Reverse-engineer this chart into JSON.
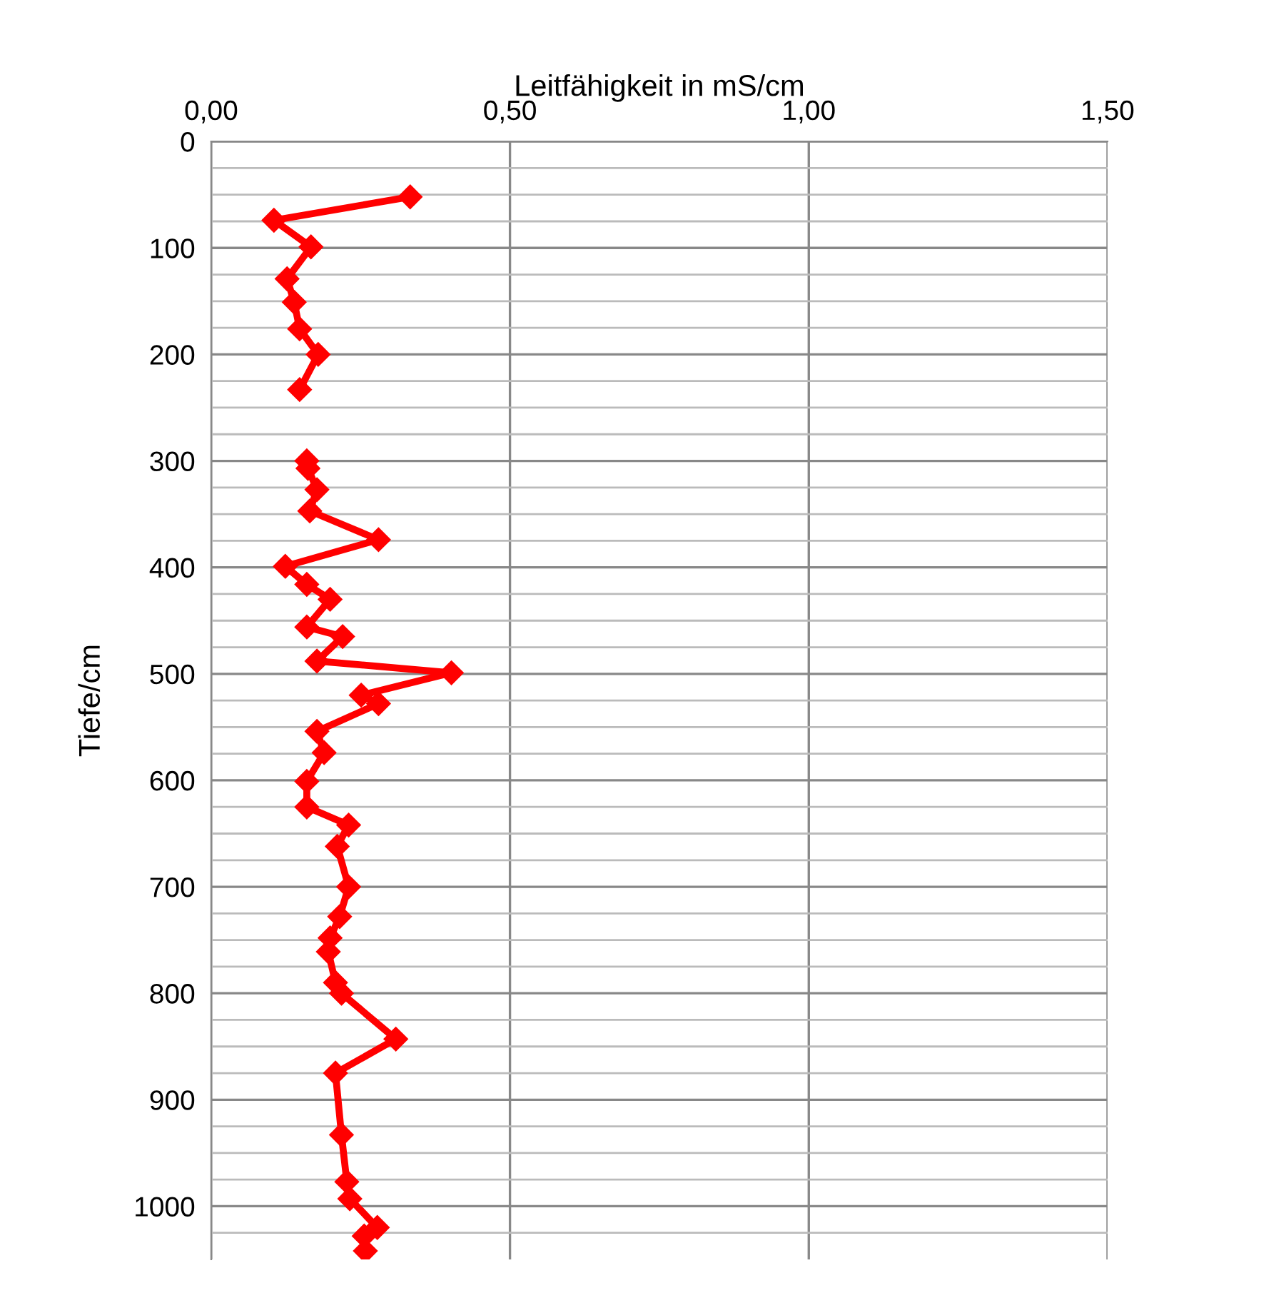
{
  "chart_data": {
    "type": "line",
    "xlabel": "Leitfähigkeit in mS/cm",
    "ylabel": "Tiefe/cm",
    "series": [
      {
        "color": "#ff0000",
        "x": [
          0.333,
          0.105,
          0.167,
          0.127,
          0.139,
          0.148,
          0.179,
          0.148,
          null,
          0.16,
          0.162,
          0.177,
          0.165,
          0.28,
          0.124,
          0.16,
          0.199,
          0.16,
          0.22,
          0.177,
          0.402,
          0.251,
          0.28,
          0.177,
          0.189,
          0.16,
          0.16,
          0.23,
          0.211,
          0.23,
          0.215,
          0.199,
          0.196,
          0.208,
          0.218,
          0.309,
          0.208,
          0.218,
          0.227,
          0.232,
          0.278,
          0.256,
          0.258
        ],
        "values": [
          52,
          74,
          99,
          129,
          151,
          176,
          200,
          233,
          null,
          300,
          307,
          327,
          347,
          374,
          399,
          416,
          430,
          456,
          465,
          488,
          499,
          520,
          528,
          554,
          574,
          601,
          625,
          642,
          662,
          700,
          728,
          748,
          761,
          790,
          800,
          843,
          875,
          933,
          977,
          993,
          1020,
          1028,
          1042
        ]
      }
    ],
    "xlim": [
      0,
      1.5
    ],
    "xticks": [
      {
        "value": 0,
        "label": "0,00"
      },
      {
        "value": 0.5,
        "label": "0,50"
      },
      {
        "value": 1.0,
        "label": "1,00"
      },
      {
        "value": 1.5,
        "label": "1,50"
      }
    ],
    "ylim": [
      1050,
      0
    ],
    "yticks": [
      0,
      {
        "value": 25,
        "label": null
      },
      {
        "value": 50,
        "label": null
      },
      {
        "value": 75,
        "label": null
      },
      100,
      {
        "value": 125,
        "label": null
      },
      {
        "value": 150,
        "label": null
      },
      {
        "value": 175,
        "label": null
      },
      200,
      {
        "value": 225,
        "label": null
      },
      {
        "value": 250,
        "label": null
      },
      {
        "value": 275,
        "label": null
      },
      300,
      {
        "value": 325,
        "label": null
      },
      {
        "value": 350,
        "label": null
      },
      {
        "value": 375,
        "label": null
      },
      400,
      {
        "value": 425,
        "label": null
      },
      {
        "value": 450,
        "label": null
      },
      {
        "value": 475,
        "label": null
      },
      500,
      {
        "value": 525,
        "label": null
      },
      {
        "value": 550,
        "label": null
      },
      {
        "value": 575,
        "label": null
      },
      600,
      {
        "value": 625,
        "label": null
      },
      {
        "value": 650,
        "label": null
      },
      {
        "value": 675,
        "label": null
      },
      700,
      {
        "value": 725,
        "label": null
      },
      {
        "value": 750,
        "label": null
      },
      {
        "value": 775,
        "label": null
      },
      800,
      {
        "value": 825,
        "label": null
      },
      {
        "value": 850,
        "label": null
      },
      {
        "value": 875,
        "label": null
      },
      900,
      {
        "value": 925,
        "label": null
      },
      {
        "value": 950,
        "label": null
      },
      {
        "value": 975,
        "label": null
      },
      1000,
      {
        "value": 1025,
        "label": null
      }
    ],
    "grid": true,
    "marker": "diamond",
    "line_style": "solid"
  }
}
